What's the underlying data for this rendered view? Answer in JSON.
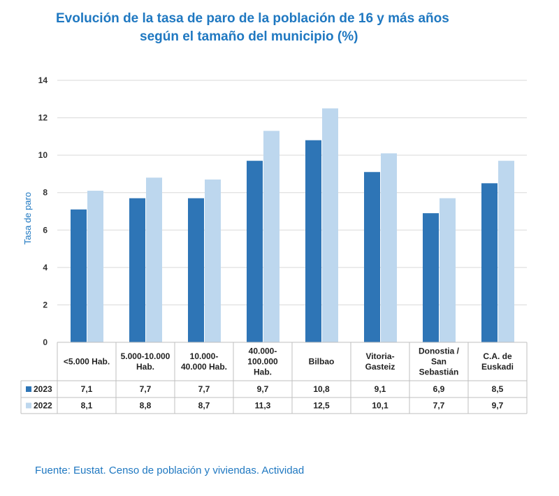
{
  "title": {
    "line1": "Evolución de la tasa de paro de la población de 16 y más años",
    "line2": "según el tamaño del municipio (%)"
  },
  "source": "Fuente: Eustat. Censo de población y viviendas. Actividad",
  "colors": {
    "s2023": "#2E75B6",
    "s2022": "#BDD7EE",
    "grid": "#D9D9D9",
    "border": "#BFBFBF"
  },
  "chart_data": {
    "type": "bar",
    "ylabel": "Tasa de paro",
    "ylim": [
      0,
      14
    ],
    "yticks": [
      "0",
      "2",
      "4",
      "6",
      "8",
      "10",
      "12",
      "14"
    ],
    "grid": true,
    "legend": "data-table",
    "categories": [
      [
        "<5.000 Hab."
      ],
      [
        "5.000-10.000",
        "Hab."
      ],
      [
        "10.000-",
        "40.000 Hab."
      ],
      [
        "40.000-",
        "100.000",
        "Hab."
      ],
      [
        "Bilbao"
      ],
      [
        "Vitoria-",
        "Gasteiz"
      ],
      [
        "Donostia /",
        "San",
        "Sebastián"
      ],
      [
        "C.A. de",
        "Euskadi"
      ]
    ],
    "series": [
      {
        "name": "2023",
        "values": [
          7.1,
          7.7,
          7.7,
          9.7,
          10.8,
          9.1,
          6.9,
          8.5
        ],
        "labels": [
          "7,1",
          "7,7",
          "7,7",
          "9,7",
          "10,8",
          "9,1",
          "6,9",
          "8,5"
        ]
      },
      {
        "name": "2022",
        "values": [
          8.1,
          8.8,
          8.7,
          11.3,
          12.5,
          10.1,
          7.7,
          9.7
        ],
        "labels": [
          "8,1",
          "8,8",
          "8,7",
          "11,3",
          "12,5",
          "10,1",
          "7,7",
          "9,7"
        ]
      }
    ]
  }
}
